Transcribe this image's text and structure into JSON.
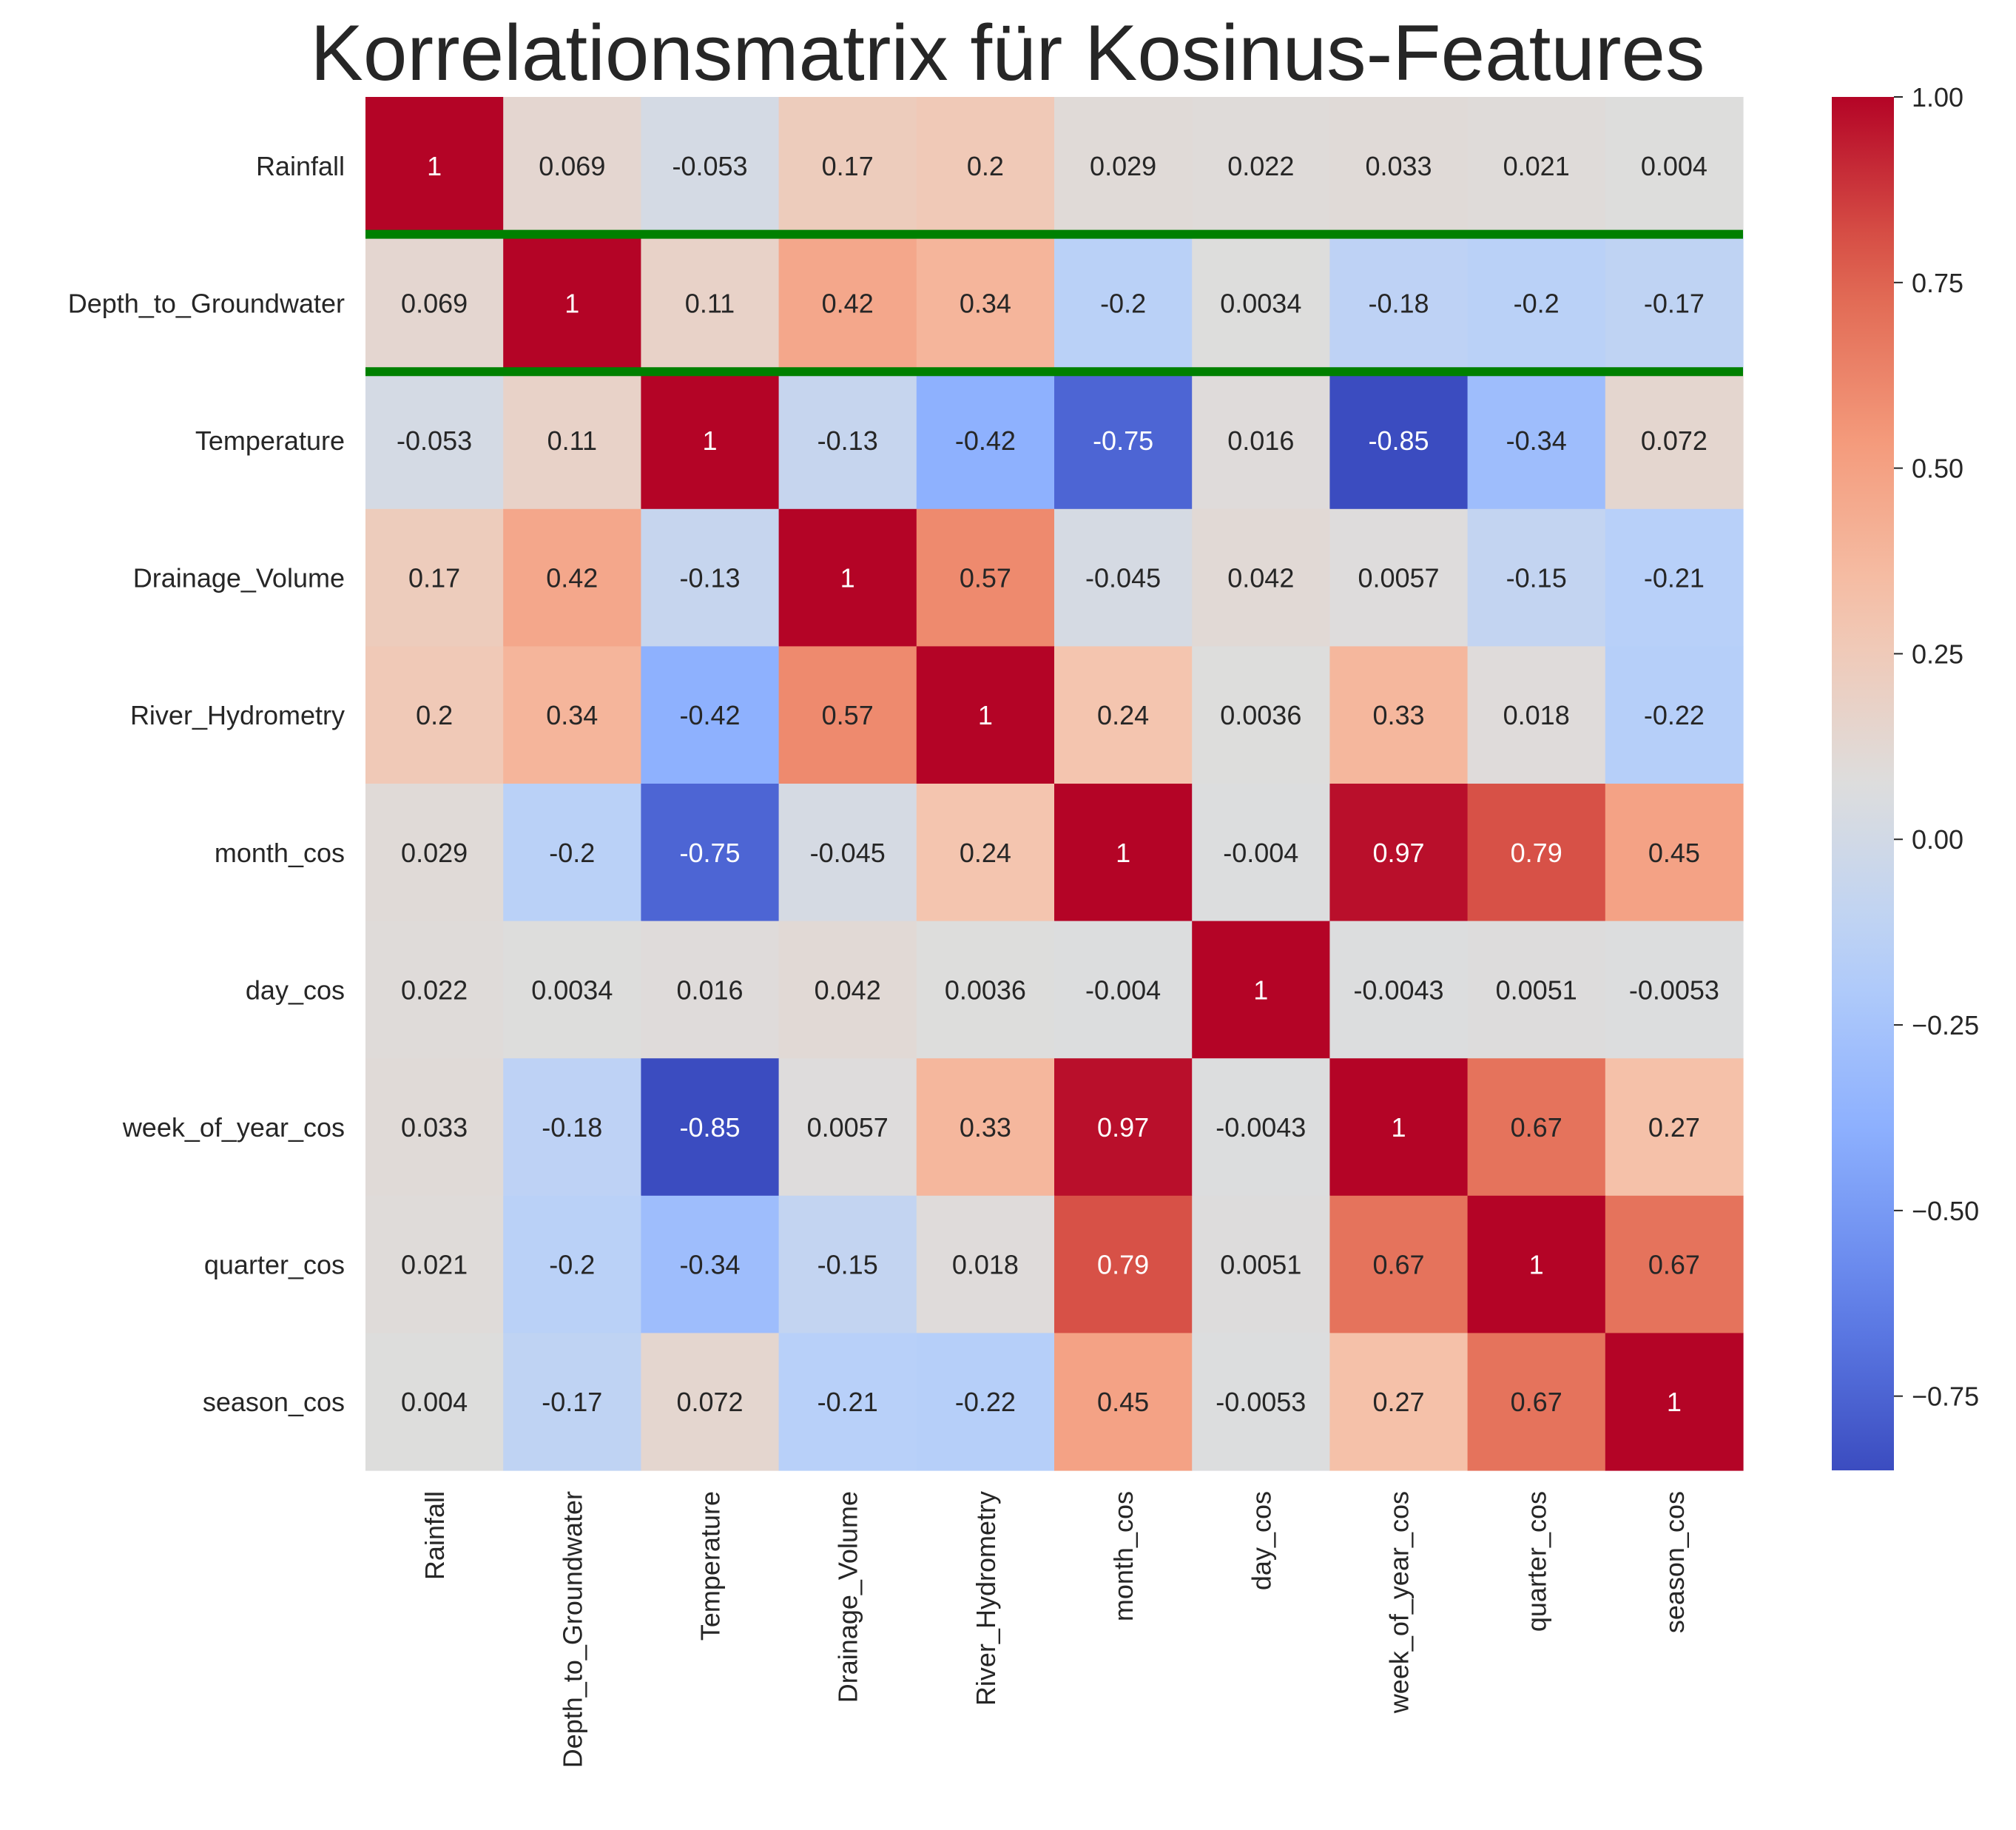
{
  "chart_data": {
    "type": "heatmap",
    "title": "Korrelationsmatrix für Kosinus-Features",
    "colormap": "coolwarm",
    "vmin": -0.85,
    "vmax": 1.0,
    "rows": [
      "Rainfall",
      "Depth_to_Groundwater",
      "Temperature",
      "Drainage_Volume",
      "River_Hydrometry",
      "month_cos",
      "day_cos",
      "week_of_year_cos",
      "quarter_cos",
      "season_cos"
    ],
    "columns": [
      "Rainfall",
      "Depth_to_Groundwater",
      "Temperature",
      "Drainage_Volume",
      "River_Hydrometry",
      "month_cos",
      "day_cos",
      "week_of_year_cos",
      "quarter_cos",
      "season_cos"
    ],
    "values": [
      [
        1,
        0.069,
        -0.053,
        0.17,
        0.2,
        0.029,
        0.022,
        0.033,
        0.021,
        0.004
      ],
      [
        0.069,
        1,
        0.11,
        0.42,
        0.34,
        -0.2,
        0.0034,
        -0.18,
        -0.2,
        -0.17
      ],
      [
        -0.053,
        0.11,
        1,
        -0.13,
        -0.42,
        -0.75,
        0.016,
        -0.85,
        -0.34,
        0.072
      ],
      [
        0.17,
        0.42,
        -0.13,
        1,
        0.57,
        -0.045,
        0.042,
        0.0057,
        -0.15,
        -0.21
      ],
      [
        0.2,
        0.34,
        -0.42,
        0.57,
        1,
        0.24,
        0.0036,
        0.33,
        0.018,
        -0.22
      ],
      [
        0.029,
        -0.2,
        -0.75,
        -0.045,
        0.24,
        1,
        -0.004,
        0.97,
        0.79,
        0.45
      ],
      [
        0.022,
        0.0034,
        0.016,
        0.042,
        0.0036,
        -0.004,
        1,
        -0.0043,
        0.0051,
        -0.0053
      ],
      [
        0.033,
        -0.18,
        -0.85,
        0.0057,
        0.33,
        0.97,
        -0.0043,
        1,
        0.67,
        0.27
      ],
      [
        0.021,
        -0.2,
        -0.34,
        -0.15,
        0.018,
        0.79,
        0.0051,
        0.67,
        1,
        0.67
      ],
      [
        0.004,
        -0.17,
        0.072,
        -0.21,
        -0.22,
        0.45,
        -0.0053,
        0.27,
        0.67,
        1
      ]
    ],
    "labels": [
      [
        "1",
        "0.069",
        "-0.053",
        "0.17",
        "0.2",
        "0.029",
        "0.022",
        "0.033",
        "0.021",
        "0.004"
      ],
      [
        "0.069",
        "1",
        "0.11",
        "0.42",
        "0.34",
        "-0.2",
        "0.0034",
        "-0.18",
        "-0.2",
        "-0.17"
      ],
      [
        "-0.053",
        "0.11",
        "1",
        "-0.13",
        "-0.42",
        "-0.75",
        "0.016",
        "-0.85",
        "-0.34",
        "0.072"
      ],
      [
        "0.17",
        "0.42",
        "-0.13",
        "1",
        "0.57",
        "-0.045",
        "0.042",
        "0.0057",
        "-0.15",
        "-0.21"
      ],
      [
        "0.2",
        "0.34",
        "-0.42",
        "0.57",
        "1",
        "0.24",
        "0.0036",
        "0.33",
        "0.018",
        "-0.22"
      ],
      [
        "0.029",
        "-0.2",
        "-0.75",
        "-0.045",
        "0.24",
        "1",
        "-0.004",
        "0.97",
        "0.79",
        "0.45"
      ],
      [
        "0.022",
        "0.0034",
        "0.016",
        "0.042",
        "0.0036",
        "-0.004",
        "1",
        "-0.0043",
        "0.0051",
        "-0.0053"
      ],
      [
        "0.033",
        "-0.18",
        "-0.85",
        "0.0057",
        "0.33",
        "0.97",
        "-0.0043",
        "1",
        "0.67",
        "0.27"
      ],
      [
        "0.021",
        "-0.2",
        "-0.34",
        "-0.15",
        "0.018",
        "0.79",
        "0.0051",
        "0.67",
        "1",
        "0.67"
      ],
      [
        "0.004",
        "-0.17",
        "0.072",
        "-0.21",
        "-0.22",
        "0.45",
        "-0.0053",
        "0.27",
        "0.67",
        "1"
      ]
    ],
    "highlighted_row": "Depth_to_Groundwater",
    "highlight_color": "#008000",
    "colorbar": {
      "ticks": [
        1.0,
        0.75,
        0.5,
        0.25,
        0.0,
        -0.25,
        -0.5,
        -0.75
      ],
      "tick_labels": [
        "1.00",
        "0.75",
        "0.50",
        "0.25",
        "0.00",
        "−0.25",
        "−0.50",
        "−0.75"
      ]
    }
  }
}
